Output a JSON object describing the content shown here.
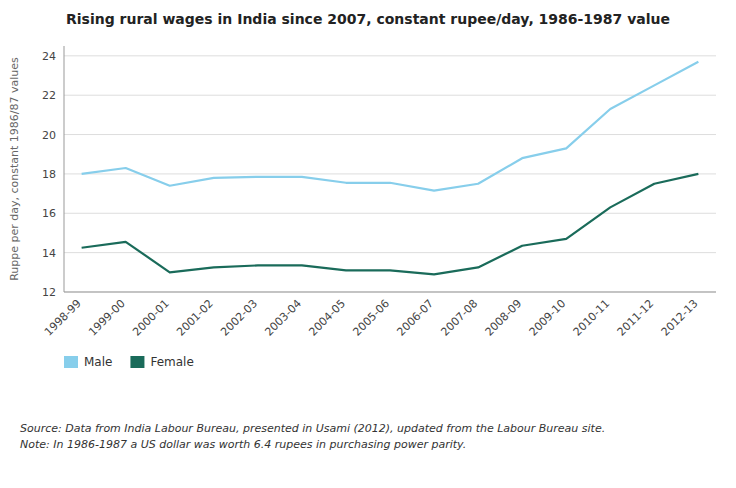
{
  "chart_data": {
    "type": "line",
    "title": "Rising rural wages in India since 2007, constant rupee/day, 1986-1987 value",
    "y_label": "Ruppe per day, constant 1986/87 values",
    "source": "Source: Data from India Labour Bureau, presented in Usami (2012), updated from the Labour Bureau site.\nNote: In 1986-1987 a US dollar was worth 6.4 rupees in purchasing power parity.",
    "categories": [
      "1998-99",
      "1999-00",
      "2000-01",
      "2001-02",
      "2002-03",
      "2003-04",
      "2004-05",
      "2005-06",
      "2006-07",
      "2007-08",
      "2008-09",
      "2009-10",
      "2010-11",
      "2011-12",
      "2012-13"
    ],
    "series": [
      {
        "name": "Male",
        "color": "#87CEEB",
        "values": [
          18.0,
          18.3,
          17.4,
          17.8,
          17.85,
          17.85,
          17.55,
          17.55,
          17.15,
          17.5,
          18.8,
          19.3,
          21.3,
          22.5,
          23.7
        ]
      },
      {
        "name": "Female",
        "color": "#1a6b5a",
        "values": [
          14.25,
          14.55,
          13.0,
          13.25,
          13.35,
          13.35,
          13.1,
          13.1,
          12.9,
          13.25,
          14.35,
          14.7,
          16.3,
          17.5,
          18.0
        ]
      }
    ],
    "ylim": [
      12,
      24.5
    ],
    "yticks": [
      12,
      14,
      16,
      18,
      20,
      22,
      24
    ],
    "grid": true,
    "legend": "bottom"
  }
}
